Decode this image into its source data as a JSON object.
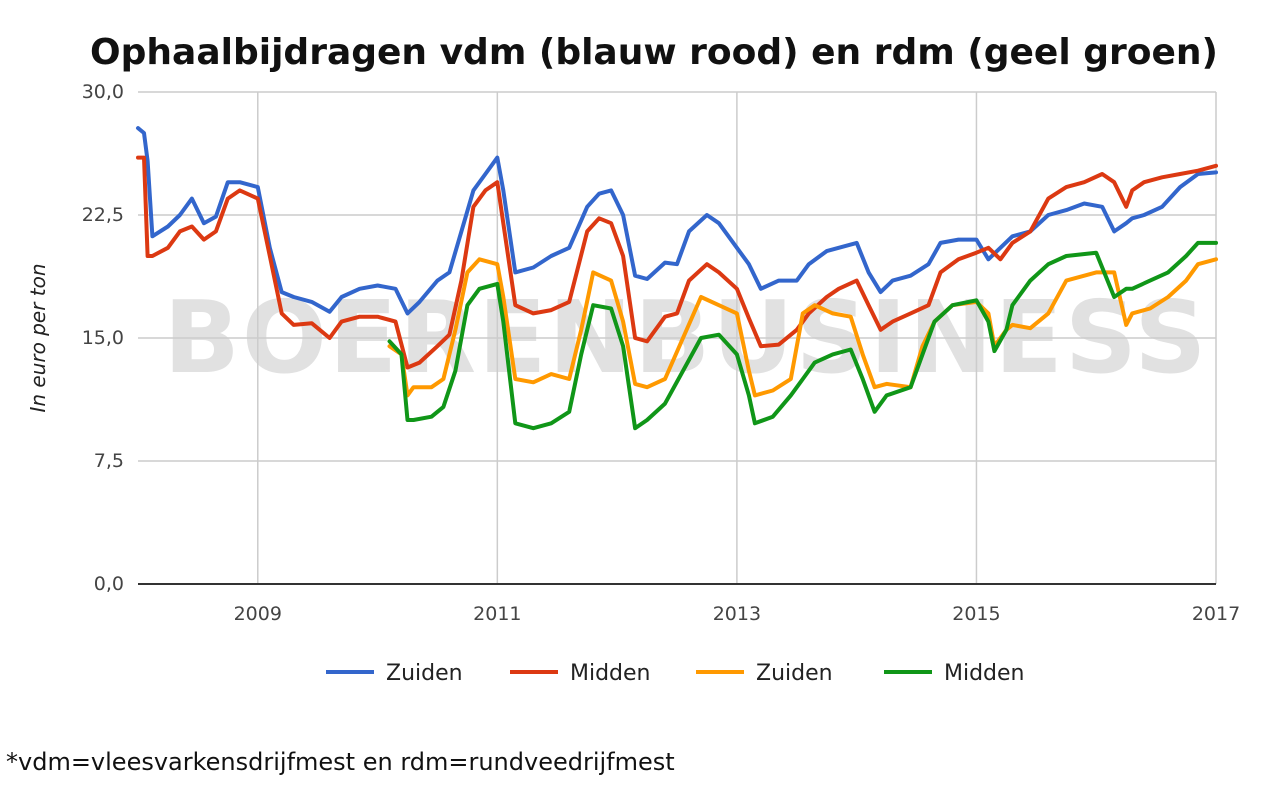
{
  "chart_data": {
    "type": "line",
    "title": "Ophaalbijdragen vdm (blauw rood) en rdm (geel groen)",
    "ylabel": "In euro per ton",
    "xlabel": "",
    "ylim": [
      0,
      30
    ],
    "xlim": [
      2008.0,
      2017.0
    ],
    "yticks": [
      "0,0",
      "7,5",
      "15,0",
      "22,5",
      "30,0"
    ],
    "xticks": [
      "2009",
      "2011",
      "2013",
      "2015",
      "2017"
    ],
    "grid": true,
    "legend_position": "bottom",
    "watermark": "BOERENBUSINESS",
    "series": [
      {
        "name": "Zuiden",
        "color": "#3366cc",
        "x": [
          2008.0,
          2008.05,
          2008.08,
          2008.12,
          2008.25,
          2008.35,
          2008.45,
          2008.55,
          2008.65,
          2008.75,
          2008.85,
          2009.0,
          2009.1,
          2009.2,
          2009.3,
          2009.45,
          2009.6,
          2009.7,
          2009.85,
          2010.0,
          2010.15,
          2010.25,
          2010.35,
          2010.5,
          2010.6,
          2010.7,
          2010.8,
          2010.9,
          2011.0,
          2011.05,
          2011.15,
          2011.3,
          2011.45,
          2011.6,
          2011.75,
          2011.85,
          2011.95,
          2012.05,
          2012.15,
          2012.25,
          2012.4,
          2012.5,
          2012.6,
          2012.75,
          2012.85,
          2013.0,
          2013.1,
          2013.2,
          2013.35,
          2013.5,
          2013.6,
          2013.75,
          2013.85,
          2014.0,
          2014.1,
          2014.2,
          2014.3,
          2014.45,
          2014.6,
          2014.7,
          2014.85,
          2015.0,
          2015.1,
          2015.2,
          2015.3,
          2015.45,
          2015.6,
          2015.75,
          2015.9,
          2016.05,
          2016.15,
          2016.25,
          2016.3,
          2016.4,
          2016.55,
          2016.7,
          2016.85,
          2017.0
        ],
        "values": [
          27.8,
          27.5,
          25.8,
          21.2,
          21.8,
          22.5,
          23.5,
          22.0,
          22.4,
          24.5,
          24.5,
          24.2,
          20.5,
          17.8,
          17.5,
          17.2,
          16.6,
          17.5,
          18.0,
          18.2,
          18.0,
          16.5,
          17.2,
          18.5,
          19.0,
          21.5,
          24.0,
          25.0,
          26.0,
          24.0,
          19.0,
          19.3,
          20.0,
          20.5,
          23.0,
          23.8,
          24.0,
          22.5,
          18.8,
          18.6,
          19.6,
          19.5,
          21.5,
          22.5,
          22.0,
          20.5,
          19.5,
          18.0,
          18.5,
          18.5,
          19.5,
          20.3,
          20.5,
          20.8,
          19.0,
          17.8,
          18.5,
          18.8,
          19.5,
          20.8,
          21.0,
          21.0,
          19.8,
          20.5,
          21.2,
          21.5,
          22.5,
          22.8,
          23.2,
          23.0,
          21.5,
          22.0,
          22.3,
          22.5,
          23.0,
          24.2,
          25.0,
          25.1
        ]
      },
      {
        "name": "Midden",
        "color": "#dc3912",
        "x": [
          2008.0,
          2008.05,
          2008.08,
          2008.12,
          2008.25,
          2008.35,
          2008.45,
          2008.55,
          2008.65,
          2008.75,
          2008.85,
          2009.0,
          2009.1,
          2009.2,
          2009.3,
          2009.45,
          2009.6,
          2009.7,
          2009.85,
          2010.0,
          2010.15,
          2010.25,
          2010.35,
          2010.5,
          2010.6,
          2010.7,
          2010.8,
          2010.9,
          2011.0,
          2011.05,
          2011.15,
          2011.3,
          2011.45,
          2011.6,
          2011.75,
          2011.85,
          2011.95,
          2012.05,
          2012.15,
          2012.25,
          2012.4,
          2012.5,
          2012.6,
          2012.75,
          2012.85,
          2013.0,
          2013.1,
          2013.2,
          2013.35,
          2013.5,
          2013.6,
          2013.75,
          2013.85,
          2014.0,
          2014.1,
          2014.2,
          2014.3,
          2014.45,
          2014.6,
          2014.7,
          2014.85,
          2015.0,
          2015.1,
          2015.2,
          2015.3,
          2015.45,
          2015.6,
          2015.75,
          2015.9,
          2016.05,
          2016.15,
          2016.25,
          2016.3,
          2016.4,
          2016.55,
          2016.7,
          2016.85,
          2017.0
        ],
        "values": [
          26.0,
          26.0,
          20.0,
          20.0,
          20.5,
          21.5,
          21.8,
          21.0,
          21.5,
          23.5,
          24.0,
          23.5,
          20.0,
          16.5,
          15.8,
          15.9,
          15.0,
          16.0,
          16.3,
          16.3,
          16.0,
          13.2,
          13.5,
          14.5,
          15.2,
          18.5,
          23.0,
          24.0,
          24.5,
          22.0,
          17.0,
          16.5,
          16.7,
          17.2,
          21.5,
          22.3,
          22.0,
          20.0,
          15.0,
          14.8,
          16.3,
          16.5,
          18.5,
          19.5,
          19.0,
          18.0,
          16.2,
          14.5,
          14.6,
          15.5,
          16.5,
          17.5,
          18.0,
          18.5,
          17.0,
          15.5,
          16.0,
          16.5,
          17.0,
          19.0,
          19.8,
          20.2,
          20.5,
          19.8,
          20.8,
          21.5,
          23.5,
          24.2,
          24.5,
          25.0,
          24.5,
          23.0,
          24.0,
          24.5,
          24.8,
          25.0,
          25.2,
          25.5
        ]
      },
      {
        "name": "Zuiden",
        "color": "#ff9900",
        "x": [
          2010.1,
          2010.2,
          2010.25,
          2010.3,
          2010.45,
          2010.55,
          2010.65,
          2010.75,
          2010.85,
          2011.0,
          2011.05,
          2011.15,
          2011.3,
          2011.45,
          2011.6,
          2011.7,
          2011.8,
          2011.95,
          2012.05,
          2012.15,
          2012.25,
          2012.4,
          2012.55,
          2012.7,
          2012.85,
          2013.0,
          2013.1,
          2013.15,
          2013.3,
          2013.45,
          2013.55,
          2013.65,
          2013.8,
          2013.95,
          2014.05,
          2014.15,
          2014.25,
          2014.45,
          2014.55,
          2014.65,
          2014.8,
          2015.0,
          2015.1,
          2015.15,
          2015.25,
          2015.3,
          2015.45,
          2015.6,
          2015.75,
          2016.0,
          2016.15,
          2016.25,
          2016.3,
          2016.45,
          2016.6,
          2016.75,
          2016.85,
          2017.0
        ],
        "values": [
          14.5,
          14.0,
          11.5,
          12.0,
          12.0,
          12.5,
          15.5,
          19.0,
          19.8,
          19.5,
          17.5,
          12.5,
          12.3,
          12.8,
          12.5,
          15.5,
          19.0,
          18.5,
          16.0,
          12.2,
          12.0,
          12.5,
          15.0,
          17.5,
          17.0,
          16.5,
          13.0,
          11.5,
          11.8,
          12.5,
          16.5,
          17.0,
          16.5,
          16.3,
          14.0,
          12.0,
          12.2,
          12.0,
          14.5,
          16.0,
          17.0,
          17.2,
          16.5,
          14.5,
          15.5,
          15.8,
          15.6,
          16.5,
          18.5,
          19.0,
          19.0,
          15.8,
          16.5,
          16.8,
          17.5,
          18.5,
          19.5,
          19.8
        ]
      },
      {
        "name": "Midden",
        "color": "#109618",
        "x": [
          2010.1,
          2010.2,
          2010.25,
          2010.3,
          2010.45,
          2010.55,
          2010.65,
          2010.75,
          2010.85,
          2011.0,
          2011.05,
          2011.15,
          2011.3,
          2011.45,
          2011.6,
          2011.7,
          2011.8,
          2011.95,
          2012.05,
          2012.15,
          2012.25,
          2012.4,
          2012.55,
          2012.7,
          2012.85,
          2013.0,
          2013.1,
          2013.15,
          2013.3,
          2013.45,
          2013.55,
          2013.65,
          2013.8,
          2013.95,
          2014.05,
          2014.15,
          2014.25,
          2014.45,
          2014.55,
          2014.65,
          2014.8,
          2015.0,
          2015.1,
          2015.15,
          2015.25,
          2015.3,
          2015.45,
          2015.6,
          2015.75,
          2016.0,
          2016.15,
          2016.25,
          2016.3,
          2016.45,
          2016.6,
          2016.75,
          2016.85,
          2017.0
        ],
        "values": [
          14.8,
          14.0,
          10.0,
          10.0,
          10.2,
          10.8,
          13.0,
          17.0,
          18.0,
          18.3,
          16.0,
          9.8,
          9.5,
          9.8,
          10.5,
          14.0,
          17.0,
          16.8,
          14.5,
          9.5,
          10.0,
          11.0,
          13.0,
          15.0,
          15.2,
          14.0,
          11.5,
          9.8,
          10.2,
          11.5,
          12.5,
          13.5,
          14.0,
          14.3,
          12.5,
          10.5,
          11.5,
          12.0,
          14.0,
          16.0,
          17.0,
          17.3,
          16.0,
          14.2,
          15.5,
          17.0,
          18.5,
          19.5,
          20.0,
          20.2,
          17.5,
          18.0,
          18.0,
          18.5,
          19.0,
          20.0,
          20.8,
          20.8
        ]
      }
    ]
  },
  "footnote": "*vdm=vleesvarkensdrijfmest en rdm=rundveedrijfmest"
}
